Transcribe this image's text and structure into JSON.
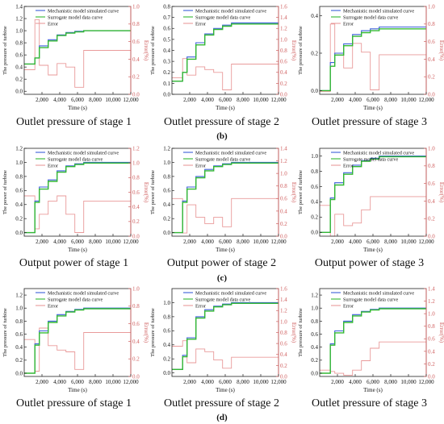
{
  "figure": {
    "row_labels": [
      "(b)",
      "(c)",
      "(d)"
    ],
    "captions": [
      "Outlet pressure of stage 1",
      "Outlet pressure of stage 2",
      "Outlet pressure of stage 3",
      "Output power of stage 1",
      "Output power of stage 2",
      "Output power of stage 3",
      "Outlet pressure of stage 1",
      "Outlet pressure of stage 2",
      "Outlet pressure of stage 3"
    ]
  },
  "colors": {
    "mechanistic": "#3b5fd9",
    "surrogate": "#33b833",
    "error": "#e99a9a",
    "axis": "#222222",
    "right_axis": "#d06060"
  },
  "legend": [
    "Mechanistic model simulated curve",
    "Surrogate model data curve",
    "Error"
  ],
  "chart_data": [
    {
      "type": "line",
      "ylabel": "The pressure of turbine",
      "y2label": "Error(%)",
      "xlabel": "Time (s)",
      "xlim": [
        0,
        12000
      ],
      "xticks": [
        2000,
        4000,
        6000,
        8000,
        10000,
        12000
      ],
      "ylim": [
        -0.05,
        1.4
      ],
      "yticks": [
        0.0,
        0.2,
        0.4,
        0.6,
        0.8,
        1.0,
        1.2,
        1.4
      ],
      "y2lim": [
        0,
        1.0
      ],
      "y2ticks": [
        0.0,
        0.2,
        0.4,
        0.6,
        0.8,
        1.0
      ],
      "mech": [
        [
          0,
          0.45
        ],
        [
          1200,
          0.55
        ],
        [
          1700,
          0.75
        ],
        [
          2700,
          0.85
        ],
        [
          3700,
          0.93
        ],
        [
          4700,
          0.97
        ],
        [
          5700,
          0.99
        ],
        [
          6700,
          1.0
        ],
        [
          12000,
          1.0
        ]
      ],
      "sur": [
        [
          0,
          0.45
        ],
        [
          1200,
          0.55
        ],
        [
          1700,
          0.72
        ],
        [
          2700,
          0.83
        ],
        [
          3700,
          0.92
        ],
        [
          4700,
          0.96
        ],
        [
          5700,
          0.98
        ],
        [
          6700,
          1.0
        ],
        [
          12000,
          1.0
        ]
      ],
      "err": [
        [
          0,
          0.28
        ],
        [
          1200,
          0.85
        ],
        [
          1700,
          0.33
        ],
        [
          2700,
          0.22
        ],
        [
          3700,
          0.35
        ],
        [
          4700,
          0.31
        ],
        [
          5700,
          0.08
        ],
        [
          6700,
          0.5
        ],
        [
          12000,
          0.5
        ]
      ]
    },
    {
      "type": "line",
      "ylabel": "The pressure of turbine",
      "y2label": "Error(%)",
      "xlabel": "Time (s)",
      "xlim": [
        0,
        12000
      ],
      "xticks": [
        2000,
        4000,
        6000,
        8000,
        10000,
        12000
      ],
      "ylim": [
        0.0,
        0.8
      ],
      "yticks": [
        0.0,
        0.1,
        0.2,
        0.3,
        0.4,
        0.5,
        0.6,
        0.7,
        0.8
      ],
      "y2lim": [
        0,
        1.6
      ],
      "y2ticks": [
        0.0,
        0.2,
        0.4,
        0.6,
        0.8,
        1.0,
        1.2,
        1.4,
        1.6
      ],
      "mech": [
        [
          0,
          0.12
        ],
        [
          1200,
          0.2
        ],
        [
          1700,
          0.34
        ],
        [
          2700,
          0.47
        ],
        [
          3700,
          0.55
        ],
        [
          4700,
          0.6
        ],
        [
          5700,
          0.63
        ],
        [
          6700,
          0.65
        ],
        [
          12000,
          0.65
        ]
      ],
      "sur": [
        [
          0,
          0.12
        ],
        [
          1200,
          0.2
        ],
        [
          1700,
          0.32
        ],
        [
          2700,
          0.45
        ],
        [
          3700,
          0.54
        ],
        [
          4700,
          0.59
        ],
        [
          5700,
          0.62
        ],
        [
          6700,
          0.64
        ],
        [
          12000,
          0.64
        ]
      ],
      "err": [
        [
          0,
          0.3
        ],
        [
          1200,
          0.65
        ],
        [
          1700,
          0.35
        ],
        [
          2700,
          0.5
        ],
        [
          3700,
          0.45
        ],
        [
          4700,
          0.4
        ],
        [
          5700,
          0.08
        ],
        [
          6700,
          0.55
        ],
        [
          12000,
          0.55
        ]
      ]
    },
    {
      "type": "line",
      "ylabel": "The pressure of turbine",
      "y2label": "Error(%)",
      "xlabel": "Time (s)",
      "xlim": [
        0,
        12000
      ],
      "xticks": [
        2000,
        4000,
        6000,
        8000,
        10000,
        12000
      ],
      "ylim": [
        -0.02,
        0.45
      ],
      "yticks": [
        0.0,
        0.2,
        0.4
      ],
      "y2lim": [
        0,
        1.0
      ],
      "y2ticks": [
        0.0,
        0.2,
        0.4,
        0.6,
        0.8,
        1.0
      ],
      "mech": [
        [
          0,
          0.0
        ],
        [
          1200,
          0.15
        ],
        [
          1700,
          0.2
        ],
        [
          2700,
          0.25
        ],
        [
          3700,
          0.3
        ],
        [
          4700,
          0.32
        ],
        [
          5700,
          0.33
        ],
        [
          6700,
          0.34
        ],
        [
          12000,
          0.34
        ]
      ],
      "sur": [
        [
          0,
          0.0
        ],
        [
          1200,
          0.13
        ],
        [
          1700,
          0.19
        ],
        [
          2700,
          0.24
        ],
        [
          3700,
          0.29
        ],
        [
          4700,
          0.31
        ],
        [
          5700,
          0.32
        ],
        [
          6700,
          0.33
        ],
        [
          12000,
          0.33
        ]
      ],
      "err": [
        [
          0,
          0.03
        ],
        [
          1200,
          0.8
        ],
        [
          1700,
          0.45
        ],
        [
          2700,
          0.3
        ],
        [
          3700,
          0.58
        ],
        [
          4700,
          0.48
        ],
        [
          5700,
          0.05
        ],
        [
          6700,
          0.45
        ],
        [
          12000,
          0.45
        ]
      ]
    },
    {
      "type": "line",
      "ylabel": "The power of turbine",
      "y2label": "Error(%)",
      "xlabel": "Time (s)",
      "xlim": [
        0,
        12000
      ],
      "xticks": [
        2000,
        4000,
        6000,
        8000,
        10000,
        12000
      ],
      "ylim": [
        -0.05,
        1.2
      ],
      "yticks": [
        0.0,
        0.2,
        0.4,
        0.6,
        0.8,
        1.0,
        1.2
      ],
      "y2lim": [
        0,
        1.2
      ],
      "y2ticks": [
        0.0,
        0.2,
        0.4,
        0.6,
        0.8,
        1.0,
        1.2
      ],
      "mech": [
        [
          0,
          0.0
        ],
        [
          1200,
          0.45
        ],
        [
          1700,
          0.65
        ],
        [
          2700,
          0.75
        ],
        [
          3700,
          0.88
        ],
        [
          4700,
          0.95
        ],
        [
          5700,
          0.98
        ],
        [
          6700,
          1.0
        ],
        [
          12000,
          1.0
        ]
      ],
      "sur": [
        [
          0,
          0.0
        ],
        [
          1200,
          0.43
        ],
        [
          1700,
          0.62
        ],
        [
          2700,
          0.73
        ],
        [
          3700,
          0.86
        ],
        [
          4700,
          0.94
        ],
        [
          5700,
          0.97
        ],
        [
          6700,
          0.99
        ],
        [
          12000,
          0.99
        ]
      ],
      "err": [
        [
          0,
          0.55
        ],
        [
          1200,
          0.1
        ],
        [
          1700,
          0.3
        ],
        [
          2700,
          0.48
        ],
        [
          3700,
          0.55
        ],
        [
          4700,
          0.3
        ],
        [
          5700,
          0.05
        ],
        [
          6700,
          0.48
        ],
        [
          12000,
          0.48
        ]
      ]
    },
    {
      "type": "line",
      "ylabel": "The power of turbine",
      "y2label": "Error(%)",
      "xlabel": "Time (s)",
      "xlim": [
        0,
        12000
      ],
      "xticks": [
        2000,
        4000,
        6000,
        8000,
        10000,
        12000
      ],
      "ylim": [
        -0.05,
        1.2
      ],
      "yticks": [
        0.0,
        0.2,
        0.4,
        0.6,
        0.8,
        1.0,
        1.2
      ],
      "y2lim": [
        0,
        1.4
      ],
      "y2ticks": [
        0.0,
        0.2,
        0.4,
        0.6,
        0.8,
        1.0,
        1.2,
        1.4
      ],
      "mech": [
        [
          0,
          0.0
        ],
        [
          1200,
          0.45
        ],
        [
          1700,
          0.65
        ],
        [
          2700,
          0.8
        ],
        [
          3700,
          0.9
        ],
        [
          4700,
          0.95
        ],
        [
          5700,
          0.98
        ],
        [
          6700,
          1.0
        ],
        [
          12000,
          1.0
        ]
      ],
      "sur": [
        [
          0,
          0.0
        ],
        [
          1200,
          0.43
        ],
        [
          1700,
          0.62
        ],
        [
          2700,
          0.78
        ],
        [
          3700,
          0.88
        ],
        [
          4700,
          0.94
        ],
        [
          5700,
          0.97
        ],
        [
          6700,
          0.99
        ],
        [
          12000,
          0.99
        ]
      ],
      "err": [
        [
          0,
          0.6
        ],
        [
          1200,
          0.05
        ],
        [
          1700,
          0.5
        ],
        [
          2700,
          0.3
        ],
        [
          3700,
          0.2
        ],
        [
          4700,
          0.3
        ],
        [
          5700,
          0.15
        ],
        [
          6700,
          0.6
        ],
        [
          12000,
          0.6
        ]
      ]
    },
    {
      "type": "line",
      "ylabel": "The power of turbine",
      "y2label": "Error(%)",
      "xlabel": "Time (s)",
      "xlim": [
        0,
        12000
      ],
      "xticks": [
        2000,
        4000,
        6000,
        8000,
        10000,
        12000
      ],
      "ylim": [
        -0.05,
        1.1
      ],
      "yticks": [
        0.0,
        0.2,
        0.4,
        0.6,
        0.8,
        1.0
      ],
      "y2lim": [
        0,
        1.0
      ],
      "y2ticks": [
        0.0,
        0.2,
        0.4,
        0.6,
        0.8,
        1.0
      ],
      "mech": [
        [
          0,
          0.0
        ],
        [
          1200,
          0.45
        ],
        [
          1700,
          0.65
        ],
        [
          2700,
          0.78
        ],
        [
          3700,
          0.88
        ],
        [
          4700,
          0.94
        ],
        [
          5700,
          0.97
        ],
        [
          6700,
          1.0
        ],
        [
          12000,
          1.0
        ]
      ],
      "sur": [
        [
          0,
          0.0
        ],
        [
          1200,
          0.43
        ],
        [
          1700,
          0.62
        ],
        [
          2700,
          0.76
        ],
        [
          3700,
          0.86
        ],
        [
          4700,
          0.93
        ],
        [
          5700,
          0.96
        ],
        [
          6700,
          0.99
        ],
        [
          12000,
          0.99
        ]
      ],
      "err": [
        [
          0,
          0.35
        ],
        [
          1200,
          0.0
        ],
        [
          1700,
          0.25
        ],
        [
          2700,
          0.12
        ],
        [
          3700,
          0.15
        ],
        [
          4700,
          0.3
        ],
        [
          5700,
          0.45
        ],
        [
          6700,
          0.45
        ],
        [
          12000,
          0.45
        ]
      ]
    },
    {
      "type": "line",
      "ylabel": "The pressure of turbine",
      "y2label": "Error(%)",
      "xlabel": "Time (s)",
      "xlim": [
        0,
        12000
      ],
      "xticks": [
        2000,
        4000,
        6000,
        8000,
        10000,
        12000
      ],
      "ylim": [
        -0.05,
        1.3
      ],
      "yticks": [
        0.0,
        0.2,
        0.4,
        0.6,
        0.8,
        1.0,
        1.2
      ],
      "y2lim": [
        0,
        1.0
      ],
      "y2ticks": [
        0.0,
        0.2,
        0.4,
        0.6,
        0.8,
        1.0
      ],
      "mech": [
        [
          0,
          0.0
        ],
        [
          1200,
          0.45
        ],
        [
          1700,
          0.65
        ],
        [
          2700,
          0.8
        ],
        [
          3700,
          0.9
        ],
        [
          4700,
          0.95
        ],
        [
          5700,
          0.98
        ],
        [
          6700,
          1.0
        ],
        [
          12000,
          1.0
        ]
      ],
      "sur": [
        [
          0,
          0.0
        ],
        [
          1200,
          0.43
        ],
        [
          1700,
          0.62
        ],
        [
          2700,
          0.78
        ],
        [
          3700,
          0.88
        ],
        [
          4700,
          0.94
        ],
        [
          5700,
          0.97
        ],
        [
          6700,
          0.99
        ],
        [
          12000,
          0.99
        ]
      ],
      "err": [
        [
          0,
          0.42
        ],
        [
          1200,
          0.06
        ],
        [
          1700,
          0.55
        ],
        [
          2700,
          0.35
        ],
        [
          3700,
          0.3
        ],
        [
          4700,
          0.28
        ],
        [
          5700,
          0.08
        ],
        [
          6700,
          0.5
        ],
        [
          12000,
          0.5
        ]
      ]
    },
    {
      "type": "line",
      "ylabel": "The pressure of turbine",
      "y2label": "Error(%)",
      "xlabel": "Time (s)",
      "xlim": [
        0,
        12000
      ],
      "xticks": [
        2000,
        4000,
        6000,
        8000,
        10000,
        12000
      ],
      "ylim": [
        -0.05,
        1.2
      ],
      "yticks": [
        0.0,
        0.2,
        0.4,
        0.6,
        0.8,
        1.0
      ],
      "y2lim": [
        0,
        1.6
      ],
      "y2ticks": [
        0.0,
        0.2,
        0.4,
        0.6,
        0.8,
        1.0,
        1.2,
        1.4,
        1.6
      ],
      "mech": [
        [
          0,
          0.05
        ],
        [
          1200,
          0.25
        ],
        [
          1700,
          0.5
        ],
        [
          2700,
          0.8
        ],
        [
          3700,
          0.9
        ],
        [
          4700,
          0.95
        ],
        [
          5700,
          0.98
        ],
        [
          6700,
          1.0
        ],
        [
          12000,
          1.0
        ]
      ],
      "sur": [
        [
          0,
          0.05
        ],
        [
          1200,
          0.23
        ],
        [
          1700,
          0.48
        ],
        [
          2700,
          0.78
        ],
        [
          3700,
          0.88
        ],
        [
          4700,
          0.94
        ],
        [
          5700,
          0.97
        ],
        [
          6700,
          0.99
        ],
        [
          12000,
          0.99
        ]
      ],
      "err": [
        [
          0,
          0.55
        ],
        [
          1200,
          0.65
        ],
        [
          1700,
          0.25
        ],
        [
          2700,
          0.5
        ],
        [
          3700,
          0.45
        ],
        [
          4700,
          0.3
        ],
        [
          5700,
          0.15
        ],
        [
          6700,
          0.35
        ],
        [
          12000,
          0.35
        ]
      ]
    },
    {
      "type": "line",
      "ylabel": "The pressure of turbine",
      "y2label": "Error(%)",
      "xlabel": "Time (s)",
      "xlim": [
        0,
        12000
      ],
      "xticks": [
        2000,
        4000,
        6000,
        8000,
        10000,
        12000
      ],
      "ylim": [
        -0.05,
        1.3
      ],
      "yticks": [
        0.0,
        0.2,
        0.4,
        0.6,
        0.8,
        1.0,
        1.2
      ],
      "y2lim": [
        0,
        1.4
      ],
      "y2ticks": [
        0.0,
        0.2,
        0.4,
        0.6,
        0.8,
        1.0,
        1.2,
        1.4
      ],
      "mech": [
        [
          0,
          0.0
        ],
        [
          1200,
          0.45
        ],
        [
          1700,
          0.65
        ],
        [
          2700,
          0.8
        ],
        [
          3700,
          0.9
        ],
        [
          4700,
          0.95
        ],
        [
          5700,
          0.98
        ],
        [
          6700,
          1.0
        ],
        [
          12000,
          1.0
        ]
      ],
      "sur": [
        [
          0,
          0.0
        ],
        [
          1200,
          0.43
        ],
        [
          1700,
          0.62
        ],
        [
          2700,
          0.78
        ],
        [
          3700,
          0.88
        ],
        [
          4700,
          0.94
        ],
        [
          5700,
          0.97
        ],
        [
          6700,
          0.99
        ],
        [
          12000,
          0.99
        ]
      ],
      "err": [
        [
          0,
          0.1
        ],
        [
          1200,
          0.08
        ],
        [
          1700,
          0.05
        ],
        [
          2700,
          0.02
        ],
        [
          3700,
          0.1
        ],
        [
          4700,
          0.25
        ],
        [
          5700,
          0.45
        ],
        [
          6700,
          0.55
        ],
        [
          12000,
          0.55
        ]
      ]
    }
  ]
}
